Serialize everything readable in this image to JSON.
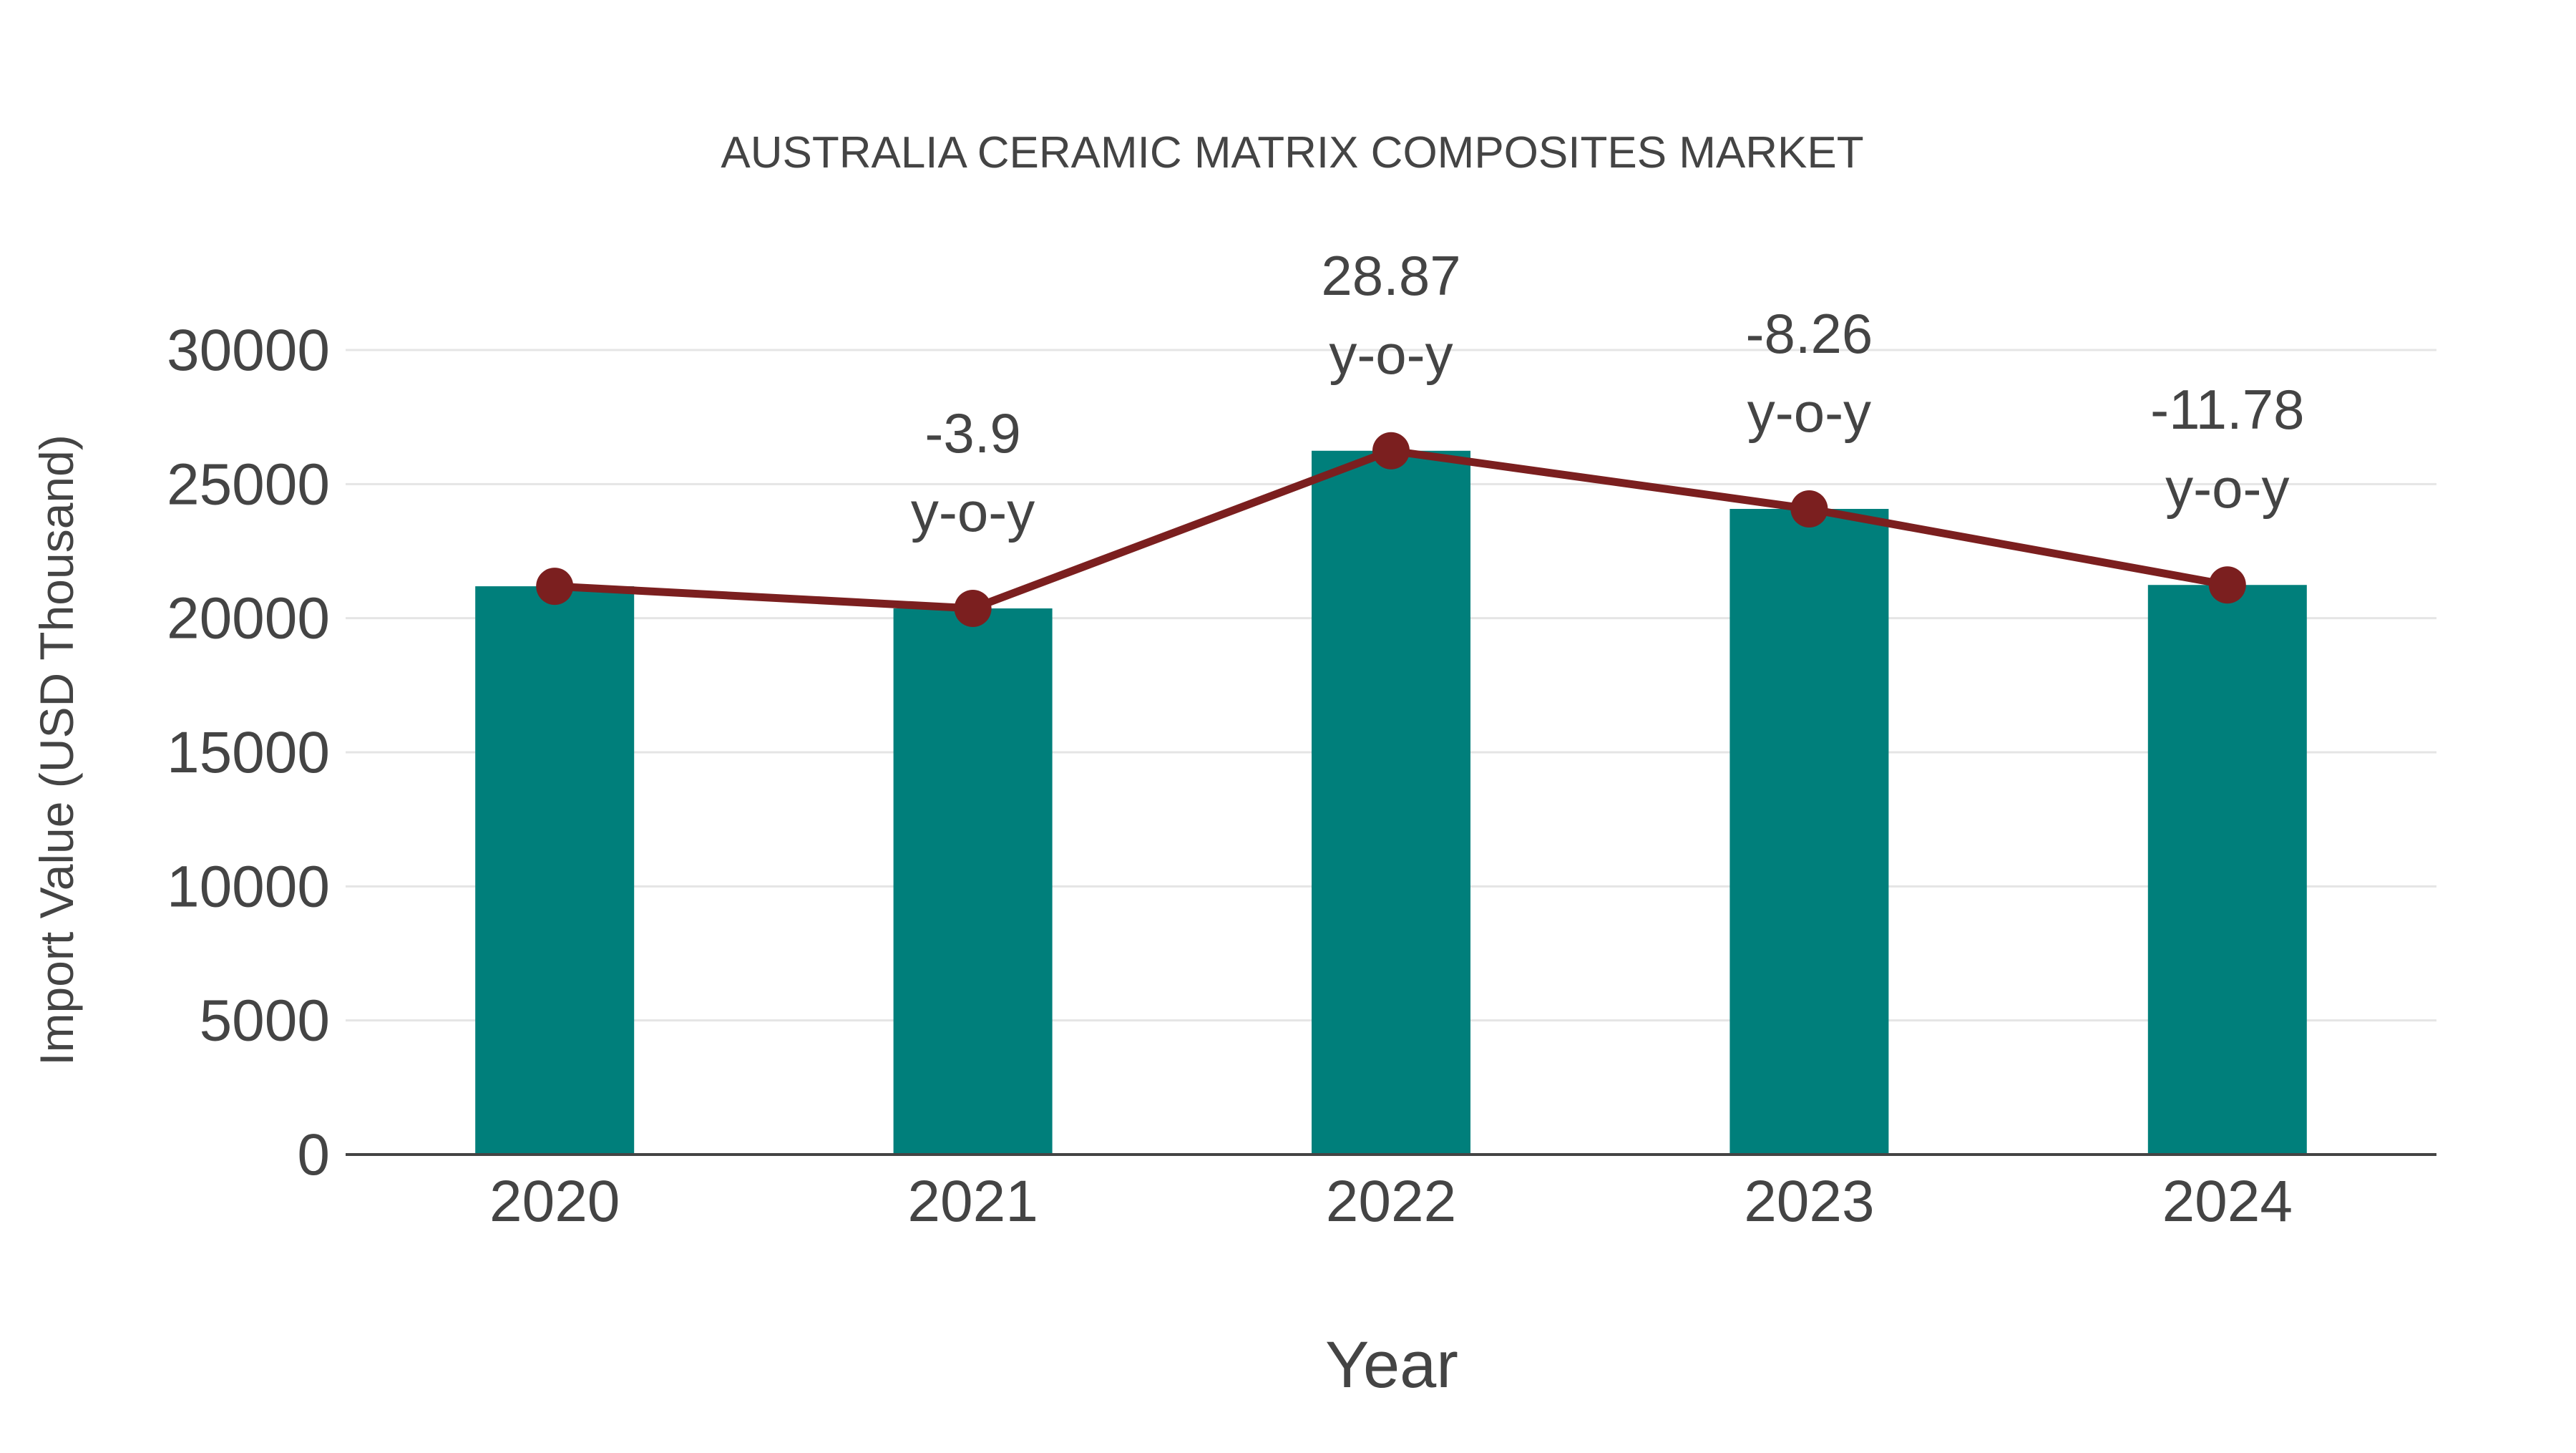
{
  "chart_data": {
    "type": "bar",
    "title": "AUSTRALIA CERAMIC MATRIX COMPOSITES MARKET",
    "xlabel": "Year",
    "ylabel": "Import Value (USD Thousand)",
    "categories": [
      "2020",
      "2021",
      "2022",
      "2023",
      "2024"
    ],
    "series": [
      {
        "name": "Import Value",
        "type": "bar",
        "color": "#007F7B",
        "values": [
          21190,
          20364,
          26243,
          24075,
          21239
        ]
      },
      {
        "name": "Import Value trend",
        "type": "line",
        "color": "#7B1F1F",
        "values": [
          21190,
          20364,
          26243,
          24075,
          21239
        ]
      }
    ],
    "annotations": [
      {
        "category": "2021",
        "value": "-3.9",
        "suffix": "y-o-y"
      },
      {
        "category": "2022",
        "value": "28.87",
        "suffix": "y-o-y"
      },
      {
        "category": "2023",
        "value": "-8.26",
        "suffix": "y-o-y"
      },
      {
        "category": "2024",
        "value": "-11.78",
        "suffix": "y-o-y"
      }
    ],
    "ylim": [
      0,
      30000
    ],
    "yticks": [
      0,
      5000,
      10000,
      15000,
      20000,
      25000,
      30000
    ],
    "grid": true,
    "legend": "none"
  },
  "colors": {
    "bar": "#007F7B",
    "line": "#7B1F1F",
    "text": "#444444",
    "grid": "#E5E5E5",
    "axis": "#444444"
  }
}
